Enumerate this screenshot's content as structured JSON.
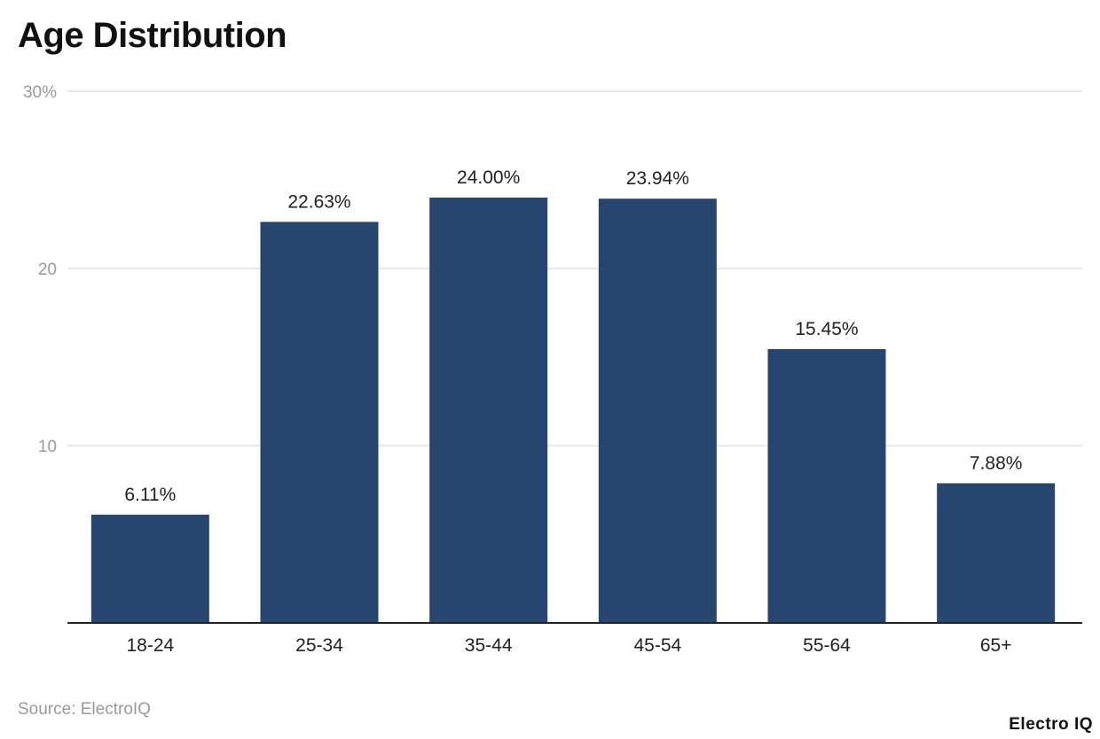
{
  "chart_data": {
    "type": "bar",
    "title": "Age Distribution",
    "categories": [
      "18-24",
      "25-34",
      "35-44",
      "45-54",
      "55-64",
      "65+"
    ],
    "values": [
      6.11,
      22.63,
      24.0,
      23.94,
      15.45,
      7.88
    ],
    "data_labels": [
      "6.11%",
      "22.63%",
      "24.00%",
      "23.94%",
      "15.45%",
      "7.88%"
    ],
    "ylim": [
      0,
      30
    ],
    "yticks": [
      10,
      20,
      30
    ],
    "ytick_labels": [
      "10",
      "20",
      "30%"
    ],
    "xlabel": "",
    "ylabel": "",
    "grid": true,
    "legend": "none",
    "bar_color": "#26466f"
  },
  "source": "Source: ElectroIQ",
  "brand": "Electro IQ"
}
